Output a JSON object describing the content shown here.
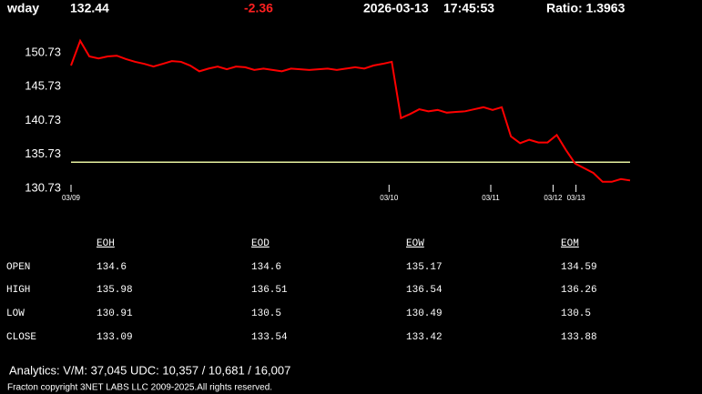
{
  "header": {
    "symbol": "wday",
    "price": 132.44,
    "change": -2.36,
    "date": "2026-03-13",
    "time": "17:45:53",
    "ratio": "Ratio: 1.3963"
  },
  "chart": {
    "type": "line",
    "color": "#ff0000",
    "reference_line": 134.6,
    "reference_color": "#e6f0a0",
    "ylim": [
      130.33,
      153.82
    ],
    "yticks": [
      150.73,
      145.73,
      140.73,
      135.73,
      130.73
    ],
    "xlim": [
      0,
      61
    ],
    "xticks": [
      {
        "value": 0,
        "label": "03/09"
      },
      {
        "value": 34.7,
        "label": "03/10"
      },
      {
        "value": 45.8,
        "label": "03/11"
      },
      {
        "value": 52.6,
        "label": "03/12"
      },
      {
        "value": 55.1,
        "label": "03/13"
      }
    ],
    "values": [
      148.85,
      152.5,
      150.2,
      149.9,
      150.2,
      150.3,
      149.8,
      149.4,
      149.1,
      148.7,
      149.1,
      149.5,
      149.4,
      148.85,
      148.0,
      148.4,
      148.7,
      148.3,
      148.7,
      148.6,
      148.2,
      148.4,
      148.2,
      148.0,
      148.4,
      148.3,
      148.2,
      148.3,
      148.4,
      148.2,
      148.4,
      148.6,
      148.4,
      148.85,
      149.1,
      149.4,
      141.1,
      141.7,
      142.4,
      142.1,
      142.3,
      141.9,
      142.0,
      142.1,
      142.4,
      142.7,
      142.3,
      142.7,
      138.4,
      137.4,
      137.9,
      137.5,
      137.5,
      138.6,
      136.4,
      134.4,
      133.7,
      133.0,
      131.7,
      131.7,
      132.1,
      131.9
    ]
  },
  "table": {
    "columns": [
      "EOH",
      "EOD",
      "EOW",
      "EOM"
    ],
    "rows": [
      [
        "OPEN",
        134.6,
        134.6,
        135.17,
        134.59
      ],
      [
        "HIGH",
        135.98,
        136.51,
        136.54,
        136.26
      ],
      [
        "LOW",
        130.91,
        130.5,
        130.49,
        130.5
      ],
      [
        "CLOSE",
        133.09,
        133.54,
        133.42,
        133.88
      ]
    ]
  },
  "footer": {
    "analytics": "Analytics:  V/M: 37,045   UDC:  10,357  / 10,681  /  16,007",
    "copyright": "Fracton copyright 3NET LABS LLC 2009-2025.All rights reserved."
  }
}
